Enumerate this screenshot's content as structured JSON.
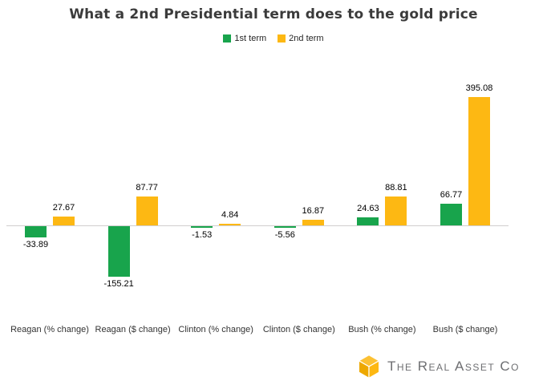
{
  "chart_data": {
    "type": "bar",
    "title": "What a 2nd Presidential term does to the gold price",
    "categories": [
      "Reagan (% change)",
      "Reagan ($ change)",
      "Clinton (% change)",
      "Clinton ($ change)",
      "Bush (% change)",
      "Bush ($ change)"
    ],
    "series": [
      {
        "name": "1st term",
        "color": "#18a44c",
        "values": [
          -33.89,
          -155.21,
          -1.53,
          -5.56,
          24.63,
          66.77
        ]
      },
      {
        "name": "2nd term",
        "color": "#fdb813",
        "values": [
          27.67,
          87.77,
          4.84,
          16.87,
          88.81,
          395.08
        ]
      }
    ],
    "legend_position": "top",
    "grid": false,
    "value_labels": true,
    "axis_line_color": "#d0cece",
    "ylim": [
      -200,
      420
    ]
  },
  "footer": {
    "brand": "The Real Asset Co",
    "brand_color": "#6d6e71",
    "logo_color": "#fdb813"
  }
}
